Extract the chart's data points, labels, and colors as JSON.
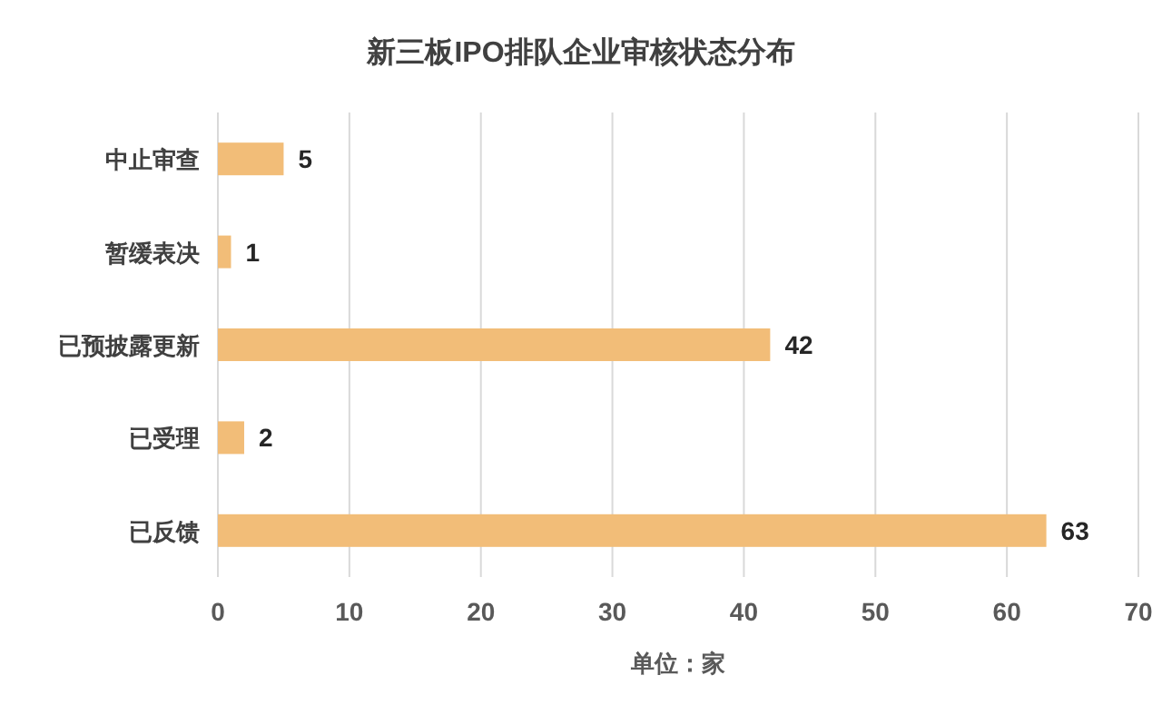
{
  "chart_data": {
    "type": "bar",
    "orientation": "horizontal",
    "title": "新三板IPO排队企业审核状态分布",
    "xlabel": "单位：家",
    "categories": [
      "中止审查",
      "暂缓表决",
      "已预披露更新",
      "已受理",
      "已反馈"
    ],
    "values": [
      5,
      1,
      42,
      2,
      63
    ],
    "color": "#f2bd78",
    "xlim": [
      0,
      70
    ],
    "xticks": [
      0,
      10,
      20,
      30,
      40,
      50,
      60,
      70
    ],
    "grid": "x",
    "data_labels": true
  }
}
